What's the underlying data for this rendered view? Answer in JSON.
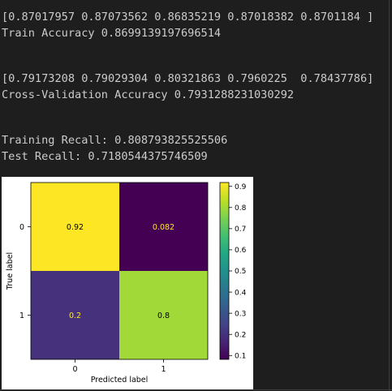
{
  "output": {
    "train_scores": "[0.87017957 0.87073562 0.86835219 0.87018382 0.8701184 ]",
    "train_accuracy": "Train Accuracy 0.8699139197696514",
    "cv_scores": "[0.79173208 0.79029304 0.80321863 0.7960225  0.78437786]",
    "cv_accuracy": "Cross-Validation Accuracy 0.7931288231030292",
    "train_recall": "Training Recall: 0.808793825525506",
    "test_recall": "Test Recall: 0.7180544375746509"
  },
  "chart_data": {
    "type": "heatmap",
    "title": "",
    "xlabel": "Predicted label",
    "ylabel": "True label",
    "x_categories": [
      "0",
      "1"
    ],
    "y_categories": [
      "0",
      "1"
    ],
    "values": [
      [
        0.918,
        0.082
      ],
      [
        0.2,
        0.8
      ]
    ],
    "cell_labels": [
      [
        "0.92",
        "0.082"
      ],
      [
        "0.2",
        "0.8"
      ]
    ],
    "colormap": "viridis",
    "colorbar": {
      "range": [
        0.082,
        0.918
      ],
      "ticks": [
        "0.1",
        "0.2",
        "0.3",
        "0.4",
        "0.5",
        "0.6",
        "0.7",
        "0.8",
        "0.9"
      ]
    }
  }
}
